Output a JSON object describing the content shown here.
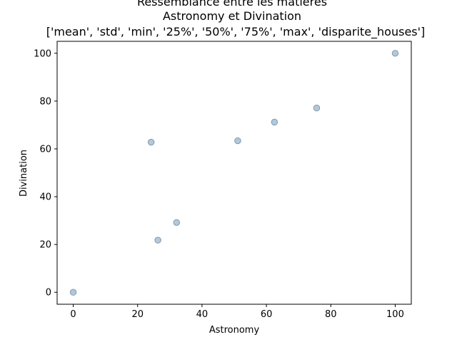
{
  "chart_data": {
    "type": "scatter",
    "title_lines": [
      "Ressemblance entre les matières",
      "Astronomy et Divination",
      "['mean', 'std', 'min', '25%', '50%', '75%', 'max', 'disparite_houses']"
    ],
    "xlabel": "Astronomy",
    "ylabel": "Divination",
    "xlim": [
      -5,
      105
    ],
    "ylim": [
      -5,
      105
    ],
    "xticks": [
      0,
      20,
      40,
      60,
      80,
      100
    ],
    "yticks": [
      0,
      20,
      40,
      60,
      80,
      100
    ],
    "grid": false,
    "marker_fill": "#b4c8d8",
    "marker_edge": "#7f98ad",
    "points": [
      {
        "x": 0,
        "y": 0
      },
      {
        "x": 24.2,
        "y": 62.8
      },
      {
        "x": 26.3,
        "y": 21.8
      },
      {
        "x": 32.1,
        "y": 29.2
      },
      {
        "x": 51.1,
        "y": 63.4
      },
      {
        "x": 62.5,
        "y": 71.2
      },
      {
        "x": 75.6,
        "y": 77.1
      },
      {
        "x": 100,
        "y": 100
      }
    ]
  }
}
